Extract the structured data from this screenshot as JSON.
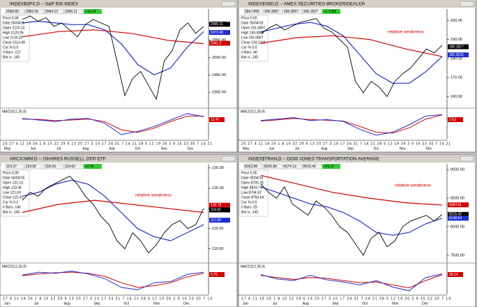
{
  "panels": [
    {
      "title": "INDEX$SPX,D -- S&P 500 INDEX",
      "quote": [
        "2066.82",
        "2083.26",
        "2064.13",
        "2096.11"
      ],
      "change": "+13.24",
      "info": [
        "Price 0.00",
        "Date 05/04/15",
        "Open 2110.23",
        "High 2120.95",
        "Low 2110.23",
        "Close 2114.49",
        "Cur % 0.0",
        "# Bars -137",
        "Bar is -145"
      ],
      "ylim": [
        1860,
        2140
      ],
      "yticks": [
        {
          "value": 1900,
          "label": "1900.00"
        },
        {
          "value": 1950,
          "label": "1950.00"
        },
        {
          "value": 2000,
          "label": "2000.00"
        },
        {
          "value": 2050,
          "label": "2050.00"
        },
        {
          "value": 2100,
          "label": "2100.00"
        }
      ],
      "price": [
        2110,
        2120,
        2105,
        2115,
        2090,
        2100,
        2080,
        2060,
        2095,
        2110,
        2100,
        2090,
        1990,
        1890,
        1940,
        1960,
        1920,
        1880,
        1990,
        2020,
        2080,
        2100,
        2070,
        2090
      ],
      "ma_blue": [
        2100,
        2105,
        2100,
        2095,
        2095,
        2080,
        2040,
        1980,
        1950,
        1970,
        2030,
        2075
      ],
      "ma_red": [
        2060,
        2075,
        2080,
        2070,
        2050,
        2040
      ],
      "tags": [
        {
          "value": 2096.11,
          "color": "#000000"
        },
        {
          "value": 2072.46,
          "color": "#1f2fd0"
        },
        {
          "value": 2041.3,
          "color": "#d00000"
        }
      ],
      "macd_label": "MACD(12,26,9)",
      "macd_ylim": [
        -60,
        30
      ],
      "macd": [
        5,
        0,
        -5,
        3,
        5,
        -10,
        -45,
        -35,
        -20,
        0,
        20,
        10
      ],
      "signal": [
        3,
        2,
        -2,
        0,
        3,
        -5,
        -30,
        -38,
        -25,
        -5,
        12,
        12
      ],
      "macd_tag": "12.47",
      "days": "20 27 4 11 18 26 1 8 15 22 29 6 13 20 27 3 10 17 24 31 7 14 21 28 5 12 19 26 2 9 16 23 30 7 14 21",
      "months": [
        "May",
        "Jun",
        "Jul",
        "Aug",
        "Sep",
        "Oct",
        "Nov",
        "Dec"
      ]
    },
    {
      "title": "INDEX$XBD,D -- AMEX SECURITIES BROKER/DEALER",
      "quote": [
        "184.7495",
        "186.3087",
        "184.3557",
        "186.1827"
      ],
      "change": "+1.1098",
      "info": [
        "Price 0.00",
        "Date 05/04/15",
        "Open 191.6897",
        "High 193.0800",
        "Low 191.0867",
        "Close 193.1104",
        "Cur % 0.0",
        "# Bars -40",
        "Bar is -145"
      ],
      "annotation": "relative weakness",
      "ylim": [
        155,
        206
      ],
      "yticks": [
        {
          "value": 160,
          "label": "160.00"
        },
        {
          "value": 170,
          "label": "170.00"
        },
        {
          "value": 180,
          "label": "180.00"
        },
        {
          "value": 190,
          "label": "190.00"
        },
        {
          "value": 200,
          "label": "200.00"
        }
      ],
      "price": [
        193,
        196,
        198,
        195,
        197,
        199,
        200,
        201,
        196,
        194,
        190,
        186,
        168,
        162,
        168,
        165,
        160,
        168,
        172,
        175,
        180,
        185,
        183,
        187
      ],
      "ma_blue": [
        194,
        196,
        198,
        199,
        197,
        192,
        182,
        172,
        167,
        167,
        173,
        181
      ],
      "ma_red": [
        188,
        191,
        192,
        190,
        185,
        181
      ],
      "tags": [
        {
          "value": 186.1827,
          "color": "#000000"
        },
        {
          "value": 181.9131,
          "color": "#1f2fd0"
        }
      ],
      "macd_label": "MACD(12,26,9)",
      "macd_ylim": [
        -6,
        4
      ],
      "macd": [
        0.5,
        1,
        1.5,
        0.5,
        0.8,
        0.2,
        -2.5,
        -4.5,
        -3.5,
        -1,
        2,
        2.5
      ],
      "signal": [
        0.3,
        0.7,
        1.2,
        0.8,
        0.6,
        0.3,
        -1.5,
        -3.5,
        -3.8,
        -2,
        1,
        2.4
      ],
      "macd_tag": "2.63",
      "days": "20 27 4 11 18 26 1 8 15 22 29 6 13 20 27 3 10 17 24 31 7 14 21 28 5 12 19 26 2 9 16 23 30 7 14 21",
      "months": [
        "May",
        "Jun",
        "Jul",
        "Aug",
        "Sep",
        "Oct",
        "Nov",
        "Dec"
      ]
    },
    {
      "title": "ARCX:IWM,D -- ISHARES RUSSELL 2000 ETF",
      "quote": [
        "119.27",
        "119.92",
        "118.93",
        "119.62"
      ],
      "change": "+0.46",
      "info": [
        "Price 0.00",
        "Date 05/04/15",
        "Open 122.13",
        "High 123.36",
        "Low 121.69",
        "Close 122.41",
        "Cur % 0.0",
        "# Bars -145",
        "Bar is -145"
      ],
      "annotation": "relative weakness",
      "ylim": [
        107,
        131
      ],
      "yticks": [
        {
          "value": 110,
          "label": "110.00"
        },
        {
          "value": 115,
          "label": "115.00"
        },
        {
          "value": 120,
          "label": "120.00"
        },
        {
          "value": 125,
          "label": "125.00"
        },
        {
          "value": 130,
          "label": "130.00"
        }
      ],
      "price": [
        122,
        124,
        123,
        125,
        126,
        127,
        128,
        126,
        123,
        121,
        118,
        116,
        112,
        110,
        114,
        112,
        109,
        111,
        114,
        116,
        117,
        115,
        116,
        120
      ],
      "ma_blue": [
        123,
        124,
        126,
        127,
        126,
        123,
        119,
        115,
        113,
        112,
        114,
        116
      ],
      "ma_red": [
        119,
        121,
        122,
        121,
        120,
        119
      ],
      "tags": [
        {
          "value": 120.78,
          "color": "#d00000"
        },
        {
          "value": 119.62,
          "color": "#000000"
        },
        {
          "value": 117.09,
          "color": "#1f2fd0"
        }
      ],
      "macd_label": "MACD(12,26,9)",
      "macd_ylim": [
        -3,
        2
      ],
      "macd": [
        0.3,
        0.8,
        0.6,
        1,
        0.5,
        -0.3,
        -1.8,
        -2.2,
        -1,
        -0.8,
        0.4,
        0.8
      ],
      "signal": [
        0.2,
        0.5,
        0.7,
        0.8,
        0.6,
        0.1,
        -1,
        -1.8,
        -1.5,
        -1,
        0,
        0.6
      ],
      "macd_tag": "0.75",
      "days": "27 4 11 18 26 1 8 15 22 29 6 13 20 27 3 10 17 24 31 7 14 21 28 5 12 19 26 2 9 16 23 30 7 14",
      "months": [
        "Jun",
        "Jul",
        "Aug",
        "Sep",
        "Oct",
        "Nov",
        "Dec"
      ]
    },
    {
      "title": "INDEX$TRAN,D -- DOW JONES TRANSPORTATION AVERAGE",
      "quote": [
        "8163.58",
        "8241.80",
        "8174.12",
        "8215.42"
      ],
      "change": "+45.37",
      "info": [
        "Price 0.00",
        "Date 05/04/15",
        "Open 8705.78",
        "High 8824.74",
        "Low 8704.62",
        "Close 8750.64",
        "Cur % 0.0",
        "# Bars -25",
        "Bar is -145"
      ],
      "annotation": "relative weakness",
      "ylim": [
        7400,
        9100
      ],
      "yticks": [
        {
          "value": 7500,
          "label": "7500.00"
        },
        {
          "value": 8000,
          "label": "8000.00"
        },
        {
          "value": 8500,
          "label": "8500.00"
        },
        {
          "value": 9000,
          "label": "9000.00"
        }
      ],
      "price": [
        8750,
        8600,
        8500,
        8700,
        8400,
        8300,
        8200,
        8450,
        8350,
        8200,
        8000,
        7900,
        7700,
        7500,
        7800,
        7900,
        7650,
        7750,
        8000,
        8100,
        8150,
        8200,
        8100,
        8215
      ],
      "ma_blue": [
        8700,
        8600,
        8500,
        8400,
        8350,
        8250,
        8100,
        7900,
        7850,
        7900,
        8050,
        8150
      ],
      "ma_red": [
        8900,
        8750,
        8600,
        8500,
        8420,
        8380
      ],
      "tags": [
        {
          "value": 8383.61,
          "color": "#d00000"
        },
        {
          "value": 8215.42,
          "color": "#000000"
        },
        {
          "value": 8148.64,
          "color": "#1f2fd0"
        }
      ],
      "macd_label": "MACD(12,26,9)",
      "macd_ylim": [
        -250,
        150
      ],
      "macd": [
        20,
        -40,
        -60,
        10,
        -50,
        -80,
        -120,
        -60,
        -150,
        -200,
        -20,
        30
      ],
      "signal": [
        10,
        -20,
        -45,
        -20,
        -30,
        -60,
        -90,
        -80,
        -120,
        -160,
        -60,
        20
      ],
      "macd_tag": "28.14",
      "days": "27 4 11 18 26 1 8 15 22 29 6 13 20 27 3 10 17 24 31 7 14 21 28 5 12 19 26 2 9 16 23 30 7 14",
      "months": [
        "Jun",
        "Jul",
        "Aug",
        "Sep",
        "Oct",
        "Nov",
        "Dec"
      ]
    }
  ]
}
